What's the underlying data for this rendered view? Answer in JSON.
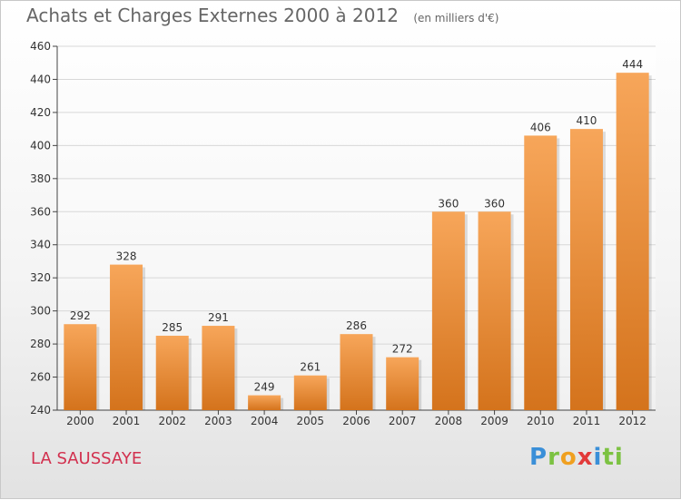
{
  "chart_data": {
    "type": "bar",
    "title": "Achats et Charges Externes 2000 à 2012",
    "subtitle": "(en milliers d'€)",
    "categories": [
      "2000",
      "2001",
      "2002",
      "2003",
      "2004",
      "2005",
      "2006",
      "2007",
      "2008",
      "2009",
      "2010",
      "2011",
      "2012"
    ],
    "values": [
      292,
      328,
      285,
      291,
      249,
      261,
      286,
      272,
      360,
      360,
      406,
      410,
      444
    ],
    "ylim": [
      240,
      460
    ],
    "yticks": [
      240,
      260,
      280,
      300,
      320,
      340,
      360,
      380,
      400,
      420,
      440,
      460
    ],
    "grid": true,
    "bar_color_top": "#f7a65a",
    "bar_color_bottom": "#d4731c"
  },
  "commune": "LA SAUSSAYE",
  "logo": [
    "P",
    "r",
    "o",
    "x",
    "i",
    "t",
    "i"
  ]
}
